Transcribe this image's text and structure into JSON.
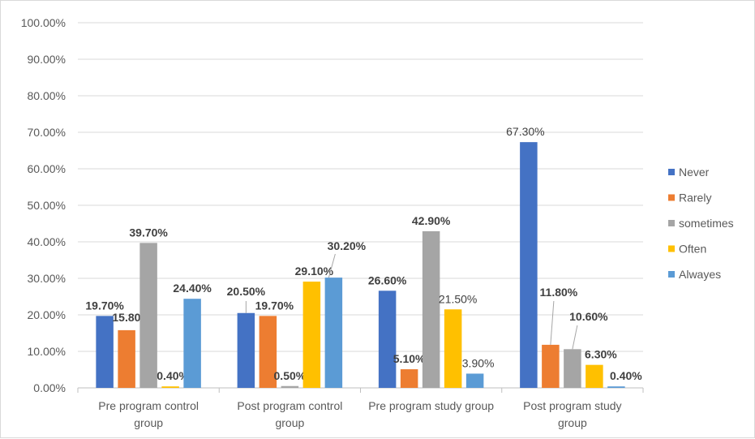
{
  "chart_data": {
    "type": "bar",
    "title": "",
    "xlabel": "",
    "ylabel": "",
    "ylim": [
      0,
      100
    ],
    "ytick_labels": [
      "0.00%",
      "10.00%",
      "20.00%",
      "30.00%",
      "40.00%",
      "50.00%",
      "60.00%",
      "70.00%",
      "80.00%",
      "90.00%",
      "100.00%"
    ],
    "grid": true,
    "legend_position": "right",
    "categories": [
      [
        "Pre program control",
        "group"
      ],
      [
        "Post program control",
        "group"
      ],
      [
        "Pre program study group"
      ],
      [
        "Post program study",
        "group"
      ]
    ],
    "series": [
      {
        "name": "Never",
        "color": "#4472c4",
        "values": [
          19.7,
          20.5,
          26.6,
          67.3
        ],
        "labels": [
          "19.70%",
          "20.50%",
          "26.60%",
          "67.30%"
        ]
      },
      {
        "name": "Rarely",
        "color": "#ed7d31",
        "values": [
          15.8,
          19.7,
          5.1,
          11.8
        ],
        "labels": [
          "15.80%",
          "19.70%",
          "5.10%",
          "11.80%"
        ]
      },
      {
        "name": "sometimes",
        "color": "#a5a5a5",
        "values": [
          39.7,
          0.5,
          42.9,
          10.6
        ],
        "labels": [
          "39.70%",
          "0.50%",
          "42.90%",
          "10.60%"
        ]
      },
      {
        "name": "Often",
        "color": "#ffc000",
        "values": [
          0.4,
          29.1,
          21.5,
          6.3
        ],
        "labels": [
          "0.40%",
          "29.10%",
          "21.50%",
          "6.30%"
        ]
      },
      {
        "name": "Alwayes",
        "color": "#5b9bd5",
        "values": [
          24.4,
          30.2,
          3.9,
          0.4
        ],
        "labels": [
          "24.40%",
          "30.20%",
          "3.90%",
          "0.40%"
        ]
      }
    ]
  }
}
